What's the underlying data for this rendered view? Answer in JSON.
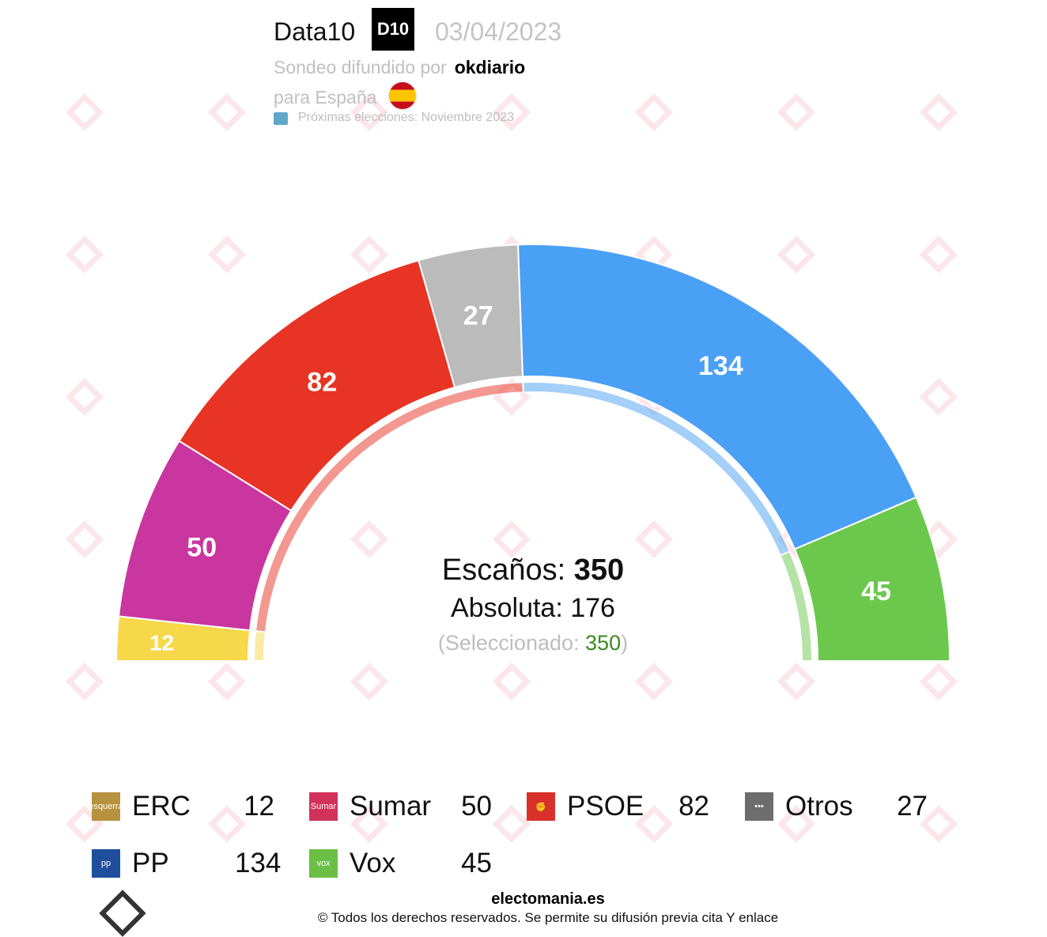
{
  "header": {
    "pollster": "Data10",
    "pollster_badge": "D10",
    "date": "03/04/2023",
    "published_by_label": "Sondeo difundido por",
    "published_by": "okdiario",
    "region": "para España",
    "next_elections": "Próximas elecciones: Noviembre 2023"
  },
  "watermark": "Electomania",
  "summary": {
    "seats_label": "Escaños:",
    "seats": "350",
    "majority_label": "Absoluta: 176",
    "selected_prefix": "(Seleccionado: ",
    "selected": "350",
    "selected_suffix": ")"
  },
  "chart_data": {
    "type": "pie",
    "subtype": "hemicycle",
    "total": 350,
    "majority": 176,
    "categories": [
      "ERC",
      "Sumar",
      "PSOE",
      "Otros",
      "PP",
      "Vox"
    ],
    "values": [
      12,
      50,
      82,
      27,
      134,
      45
    ],
    "colors": [
      "#f6d84a",
      "#c936a0",
      "#e83424",
      "#bbbbbb",
      "#4aa0f5",
      "#6bc84d"
    ],
    "blocs": [
      {
        "seats": 12,
        "color": "#f6d84a"
      },
      {
        "seats": 159,
        "color": "#e83424"
      },
      {
        "seats": 134,
        "color": "#4aa0f5"
      },
      {
        "seats": 45,
        "color": "#6bc84d"
      }
    ]
  },
  "legend": [
    {
      "name": "ERC",
      "value": "12",
      "color": "#b8913f",
      "icon": "esquerra"
    },
    {
      "name": "Sumar",
      "value": "50",
      "color": "#d0325a",
      "icon": "Sumar"
    },
    {
      "name": "PSOE",
      "value": "82",
      "color": "#d9302a",
      "icon": "✊"
    },
    {
      "name": "Otros",
      "value": "27",
      "color": "#6d6d6d",
      "icon": "•••"
    },
    {
      "name": "PP",
      "value": "134",
      "color": "#1f4f9c",
      "icon": "pp"
    },
    {
      "name": "Vox",
      "value": "45",
      "color": "#6cbf45",
      "icon": "vox"
    }
  ],
  "footer": {
    "site": "electomania.es",
    "copyright": "© Todos los derechos reservados. Se permite su difusión previa cita Y enlace"
  }
}
